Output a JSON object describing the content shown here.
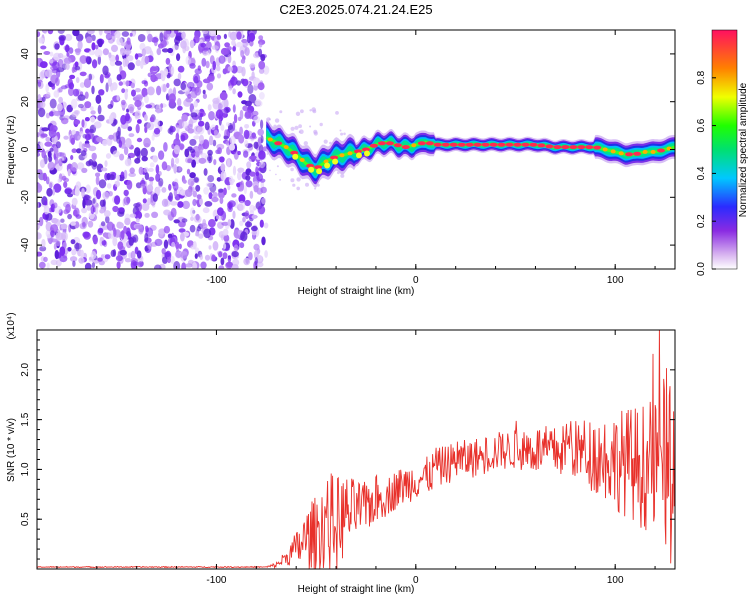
{
  "chart_data": [
    {
      "type": "heatmap",
      "title": "C2E3.2025.074.21.24.E25",
      "xlabel": "Height of straight line (km)",
      "ylabel": "Frequency (Hz)",
      "xlim": [
        -190,
        130
      ],
      "ylim": [
        -50,
        50
      ],
      "xticks": [
        "-100",
        "0",
        "100"
      ],
      "yticks": [
        "40",
        "20",
        "0",
        "-20",
        "-40"
      ],
      "noise_region": {
        "x_start": -190,
        "x_end": -75
      },
      "ridge": {
        "x": [
          -75,
          -70,
          -65,
          -60,
          -55,
          -50,
          -45,
          -40,
          -35,
          -30,
          -25,
          -20,
          -15,
          -10,
          -5,
          0,
          5,
          10,
          20,
          30,
          40,
          50,
          60,
          70,
          80,
          90,
          95,
          100,
          105,
          110,
          115,
          120,
          125,
          130
        ],
        "y": [
          5,
          3,
          1,
          -2,
          -6,
          -8,
          -5,
          -3,
          -2,
          -1,
          0,
          2,
          3,
          2,
          1,
          2,
          3,
          2,
          2,
          2,
          2,
          2,
          2,
          1,
          1,
          1,
          0,
          -1,
          -2,
          -2,
          -1,
          -1,
          0,
          1
        ]
      },
      "colorbar": {
        "label": "Normalized spectral amplitude",
        "range": [
          0,
          1
        ],
        "ticks": [
          "0.0",
          "0.2",
          "0.4",
          "0.6",
          "0.8"
        ]
      }
    },
    {
      "type": "line",
      "xlabel": "Height of straight line (km)",
      "ylabel": "SNR (10 * v/v)",
      "scale_label": "(x10⁴)",
      "xlim": [
        -190,
        130
      ],
      "ylim": [
        0,
        2.4
      ],
      "xticks": [
        "-100",
        "0",
        "100"
      ],
      "yticks": [
        "2.0",
        "1.5",
        "1.0",
        "0.5"
      ],
      "series": [
        {
          "name": "SNR",
          "color": "#e8302a",
          "x": [
            -190,
            -170,
            -150,
            -130,
            -110,
            -90,
            -75,
            -70,
            -65,
            -60,
            -55,
            -50,
            -45,
            -40,
            -35,
            -30,
            -25,
            -20,
            -15,
            -10,
            -5,
            0,
            5,
            10,
            15,
            20,
            25,
            30,
            35,
            40,
            50,
            60,
            70,
            80,
            90,
            100,
            110,
            120,
            125,
            130
          ],
          "values": [
            0.02,
            0.02,
            0.02,
            0.02,
            0.02,
            0.02,
            0.02,
            0.04,
            0.12,
            0.2,
            0.3,
            0.35,
            0.5,
            0.45,
            0.55,
            0.6,
            0.62,
            0.7,
            0.72,
            0.8,
            0.85,
            0.9,
            0.92,
            1.0,
            1.05,
            1.08,
            1.1,
            1.12,
            1.15,
            1.18,
            1.2,
            1.2,
            1.18,
            1.2,
            1.15,
            1.1,
            1.05,
            1.0,
            1.1,
            1.0
          ],
          "spread": [
            0.005,
            0.005,
            0.005,
            0.005,
            0.005,
            0.005,
            0.005,
            0.03,
            0.08,
            0.18,
            0.3,
            0.4,
            0.5,
            0.5,
            0.4,
            0.3,
            0.25,
            0.25,
            0.2,
            0.2,
            0.2,
            0.2,
            0.2,
            0.2,
            0.2,
            0.2,
            0.2,
            0.2,
            0.2,
            0.2,
            0.2,
            0.25,
            0.25,
            0.3,
            0.4,
            0.5,
            0.6,
            0.7,
            0.9,
            1.2
          ]
        }
      ]
    }
  ]
}
